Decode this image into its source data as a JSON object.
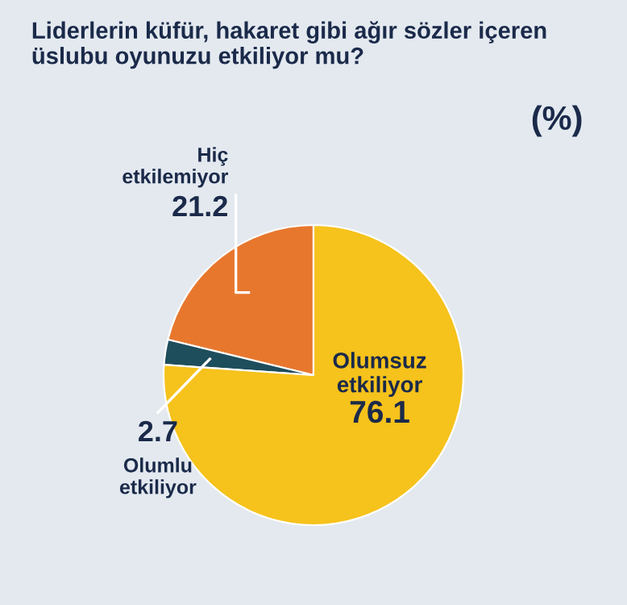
{
  "chart_data": {
    "type": "pie",
    "title": "Liderlerin küfür, hakaret gibi ağır sözler içeren üslubu oyunuzu etkiliyor mu?",
    "subtitle": "(%)",
    "categories": [
      "Hiç etkilemiyor",
      "Olumlu etkiliyor",
      "Olumsuz etkiliyor"
    ],
    "values": [
      21.2,
      2.7,
      76.1
    ],
    "colors": [
      "#e8772e",
      "#1e4d5c",
      "#f6c21c"
    ],
    "data_labels": true
  }
}
